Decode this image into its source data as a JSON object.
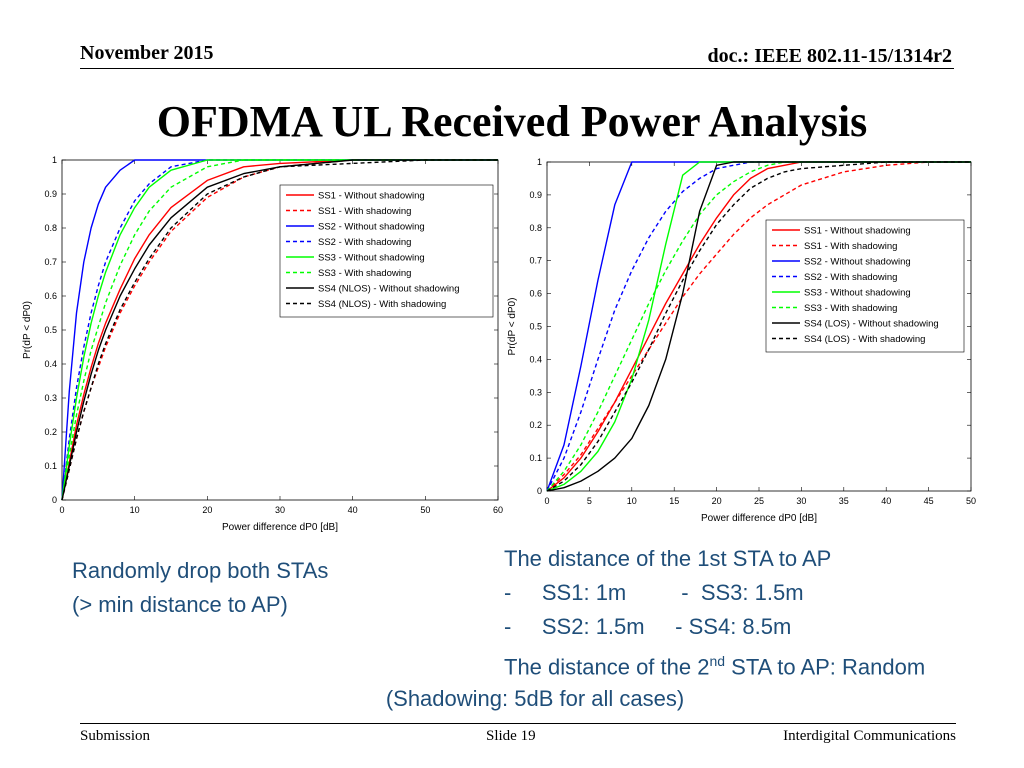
{
  "header": {
    "date": "November 2015",
    "doc": "doc.: IEEE 802.11-15/1314r2"
  },
  "title": "OFDMA UL Received Power Analysis",
  "notes": {
    "left": [
      "Randomly drop both STAs",
      "(> min distance to AP)"
    ],
    "right": {
      "line1": "The distance of the 1st STA to AP",
      "line2": "-     SS1: 1m         -  SS3: 1.5m",
      "line3": "-     SS2: 1.5m     - SS4: 8.5m",
      "line4_pre": "The distance of the 2",
      "line4_sup": "nd",
      "line4_post": " STA to AP: Random"
    },
    "shadowing": "(Shadowing: 5dB for all cases)"
  },
  "footer": {
    "left": "Submission",
    "center": "Slide 19",
    "right": "Interdigital Communications"
  },
  "chart_data": [
    {
      "type": "line",
      "title": "",
      "xlabel": "Power difference dP0 [dB]",
      "ylabel": "Pr(dP < dP0)",
      "xlim": [
        0,
        60
      ],
      "ylim": [
        0,
        1
      ],
      "xticks": [
        0,
        10,
        20,
        30,
        40,
        50,
        60
      ],
      "yticks": [
        0,
        0.1,
        0.2,
        0.3,
        0.4,
        0.5,
        0.6,
        0.7,
        0.8,
        0.9,
        1
      ],
      "x": [
        0,
        1,
        2,
        3,
        4,
        5,
        6,
        8,
        10,
        12,
        15,
        20,
        25,
        30,
        40,
        50,
        60
      ],
      "legend": "top-right",
      "series": [
        {
          "name": "SS1 - Without shadowing",
          "color": "#ff0000",
          "dash": false,
          "values": [
            0,
            0.11,
            0.22,
            0.31,
            0.39,
            0.46,
            0.52,
            0.62,
            0.71,
            0.78,
            0.86,
            0.94,
            0.98,
            0.99,
            1,
            1,
            1
          ]
        },
        {
          "name": "SS1 - With shadowing",
          "color": "#ff0000",
          "dash": true,
          "values": [
            0,
            0.09,
            0.18,
            0.26,
            0.33,
            0.39,
            0.45,
            0.55,
            0.63,
            0.7,
            0.79,
            0.89,
            0.95,
            0.98,
            1,
            1,
            1
          ]
        },
        {
          "name": "SS2 - Without shadowing",
          "color": "#0000ff",
          "dash": false,
          "values": [
            0,
            0.32,
            0.55,
            0.7,
            0.8,
            0.87,
            0.92,
            0.97,
            1,
            1,
            1,
            1,
            1,
            1,
            1,
            1,
            1
          ]
        },
        {
          "name": "SS2 - With shadowing",
          "color": "#0000ff",
          "dash": true,
          "values": [
            0,
            0.18,
            0.33,
            0.45,
            0.55,
            0.63,
            0.7,
            0.8,
            0.88,
            0.93,
            0.98,
            1,
            1,
            1,
            1,
            1,
            1
          ]
        },
        {
          "name": "SS3 - Without shadowing",
          "color": "#00ff00",
          "dash": false,
          "values": [
            0,
            0.16,
            0.3,
            0.42,
            0.52,
            0.6,
            0.67,
            0.78,
            0.86,
            0.92,
            0.97,
            1,
            1,
            1,
            1,
            1,
            1
          ]
        },
        {
          "name": "SS3 - With shadowing",
          "color": "#00ff00",
          "dash": true,
          "values": [
            0,
            0.13,
            0.25,
            0.35,
            0.44,
            0.51,
            0.58,
            0.69,
            0.78,
            0.85,
            0.92,
            0.98,
            1,
            1,
            1,
            1,
            1
          ]
        },
        {
          "name": "SS4 (NLOS) - Without shadowing",
          "color": "#000000",
          "dash": false,
          "values": [
            0,
            0.1,
            0.2,
            0.29,
            0.37,
            0.44,
            0.5,
            0.6,
            0.68,
            0.75,
            0.83,
            0.92,
            0.96,
            0.98,
            1,
            1,
            1
          ]
        },
        {
          "name": "SS4 (NLOS) - With shadowing",
          "color": "#000000",
          "dash": true,
          "values": [
            0,
            0.09,
            0.18,
            0.26,
            0.33,
            0.4,
            0.46,
            0.56,
            0.64,
            0.71,
            0.8,
            0.9,
            0.95,
            0.98,
            0.99,
            1,
            1
          ]
        }
      ]
    },
    {
      "type": "line",
      "title": "",
      "xlabel": "Power difference dP0 [dB]",
      "ylabel": "Pr(dP < dP0)",
      "xlim": [
        0,
        50
      ],
      "ylim": [
        0,
        1
      ],
      "xticks": [
        0,
        5,
        10,
        15,
        20,
        25,
        30,
        35,
        40,
        45,
        50
      ],
      "yticks": [
        0,
        0.1,
        0.2,
        0.3,
        0.4,
        0.5,
        0.6,
        0.7,
        0.8,
        0.9,
        1
      ],
      "x": [
        0,
        2,
        4,
        6,
        8,
        10,
        12,
        14,
        16,
        18,
        20,
        22,
        24,
        26,
        28,
        30,
        35,
        40,
        45,
        50
      ],
      "legend": "top-right",
      "series": [
        {
          "name": "SS1 - Without shadowing",
          "color": "#ff0000",
          "dash": false,
          "values": [
            0,
            0.04,
            0.1,
            0.18,
            0.27,
            0.37,
            0.47,
            0.57,
            0.66,
            0.75,
            0.83,
            0.9,
            0.95,
            0.98,
            0.99,
            1,
            1,
            1,
            1,
            1
          ]
        },
        {
          "name": "SS1 - With shadowing",
          "color": "#ff0000",
          "dash": true,
          "values": [
            0,
            0.05,
            0.11,
            0.19,
            0.27,
            0.35,
            0.43,
            0.51,
            0.59,
            0.66,
            0.72,
            0.78,
            0.83,
            0.87,
            0.9,
            0.93,
            0.97,
            0.99,
            1,
            1
          ]
        },
        {
          "name": "SS2 - Without shadowing",
          "color": "#0000ff",
          "dash": false,
          "values": [
            0,
            0.14,
            0.38,
            0.64,
            0.87,
            1,
            1,
            1,
            1,
            1,
            1,
            1,
            1,
            1,
            1,
            1,
            1,
            1,
            1,
            1
          ]
        },
        {
          "name": "SS2 - With shadowing",
          "color": "#0000ff",
          "dash": true,
          "values": [
            0,
            0.1,
            0.24,
            0.4,
            0.55,
            0.67,
            0.77,
            0.85,
            0.91,
            0.95,
            0.98,
            0.99,
            1,
            1,
            1,
            1,
            1,
            1,
            1,
            1
          ]
        },
        {
          "name": "SS3 - Without shadowing",
          "color": "#00ff00",
          "dash": false,
          "values": [
            0,
            0.02,
            0.06,
            0.12,
            0.21,
            0.34,
            0.52,
            0.75,
            0.96,
            1,
            1,
            1,
            1,
            1,
            1,
            1,
            1,
            1,
            1,
            1
          ]
        },
        {
          "name": "SS3 - With shadowing",
          "color": "#00ff00",
          "dash": true,
          "values": [
            0,
            0.06,
            0.14,
            0.24,
            0.35,
            0.46,
            0.57,
            0.67,
            0.76,
            0.84,
            0.9,
            0.94,
            0.97,
            0.99,
            1,
            1,
            1,
            1,
            1,
            1
          ]
        },
        {
          "name": "SS4 (LOS) - Without shadowing",
          "color": "#000000",
          "dash": false,
          "values": [
            0,
            0.01,
            0.03,
            0.06,
            0.1,
            0.16,
            0.26,
            0.4,
            0.6,
            0.85,
            0.99,
            1,
            1,
            1,
            1,
            1,
            1,
            1,
            1,
            1
          ]
        },
        {
          "name": "SS4 (LOS) - With shadowing",
          "color": "#000000",
          "dash": true,
          "values": [
            0,
            0.03,
            0.08,
            0.15,
            0.24,
            0.33,
            0.43,
            0.54,
            0.64,
            0.73,
            0.81,
            0.87,
            0.92,
            0.95,
            0.97,
            0.98,
            0.99,
            1,
            1,
            1
          ]
        }
      ]
    }
  ]
}
